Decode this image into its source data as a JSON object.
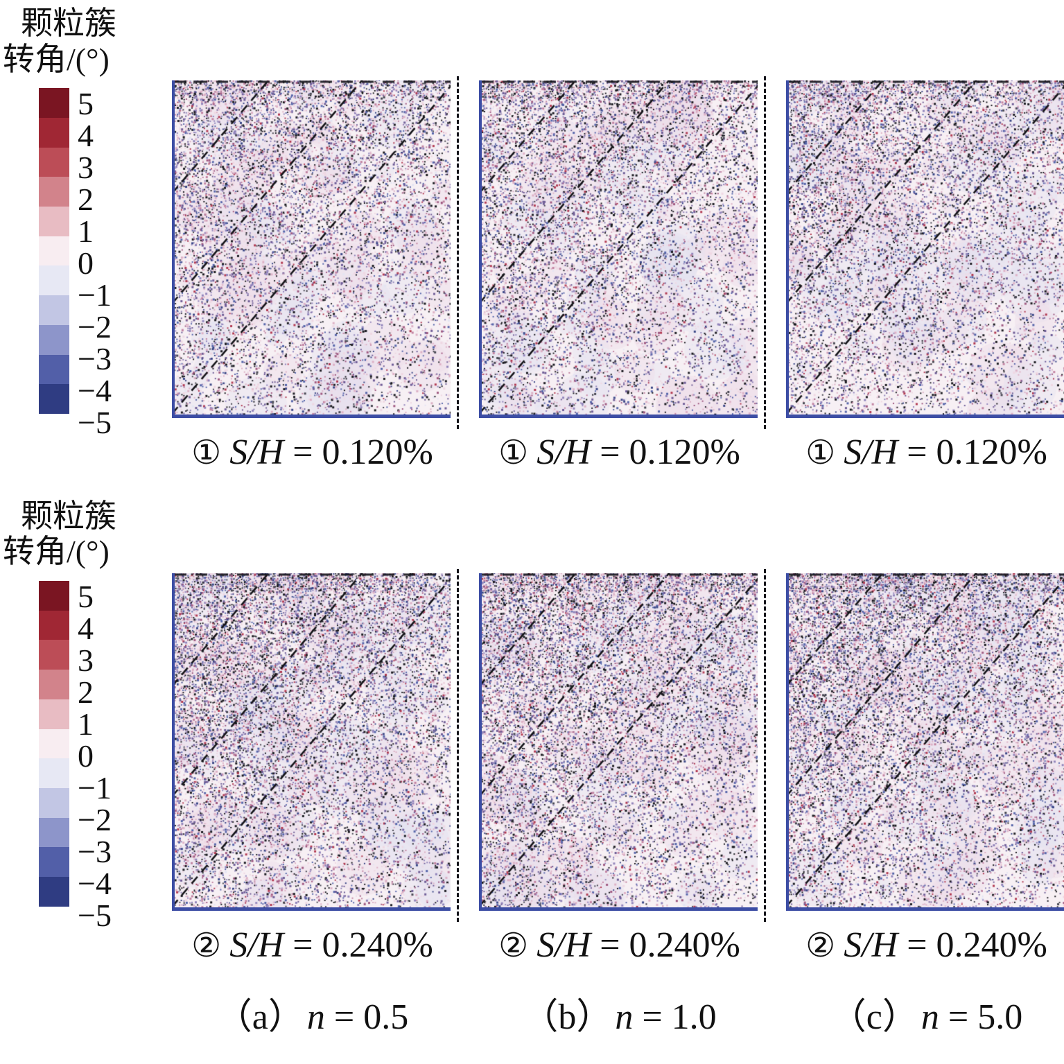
{
  "figure": {
    "legend": {
      "title_lines": [
        "颗粒簇",
        "转角/(°)"
      ],
      "tick_labels": [
        "5",
        "4",
        "3",
        "2",
        "1",
        "0",
        "−1",
        "−2",
        "−3",
        "−4",
        "−5"
      ],
      "colors": [
        "#7a1522",
        "#a02734",
        "#bc4d57",
        "#d2838b",
        "#e8bcc3",
        "#f8edf1",
        "#e7e8f4",
        "#c2c6e4",
        "#8d95ca",
        "#525fa8",
        "#2f3c82"
      ]
    },
    "rows": [
      {
        "label": {
          "circle": "①",
          "symbol": "S/H",
          "eq": " = 0.120%"
        }
      },
      {
        "label": {
          "circle": "②",
          "symbol": "S/H",
          "eq": " = 0.240%"
        }
      }
    ],
    "captions": [
      {
        "prefix": "（a）",
        "symbol": "n",
        "eq": " = 0.5"
      },
      {
        "prefix": "（b）",
        "symbol": "n",
        "eq": " = 1.0"
      },
      {
        "prefix": "（c）",
        "symbol": "n",
        "eq": " = 5.0"
      }
    ]
  },
  "render": {
    "panels": [
      {
        "seed": 101,
        "density": 0.52
      },
      {
        "seed": 202,
        "density": 0.52
      },
      {
        "seed": 303,
        "density": 0.52
      },
      {
        "seed": 404,
        "density": 0.64
      },
      {
        "seed": 505,
        "density": 0.64
      },
      {
        "seed": 606,
        "density": 0.64
      }
    ],
    "bands": [
      0.33,
      0.66,
      0.99
    ],
    "band_slope": 1.18
  },
  "chart_data": {
    "type": "heatmap",
    "value_label": "颗粒簇转角/(°)",
    "colorbar": {
      "orientation": "vertical",
      "position": "left",
      "range": [
        -5,
        5
      ],
      "ticks": [
        5,
        4,
        3,
        2,
        1,
        0,
        -1,
        -2,
        -3,
        -4,
        -5
      ],
      "colors": [
        "#7a1522",
        "#a02734",
        "#bc4d57",
        "#d2838b",
        "#e8bcc3",
        "#f8edf1",
        "#e7e8f4",
        "#c2c6e4",
        "#8d95ca",
        "#525fa8",
        "#2f3c82"
      ]
    },
    "grid": {
      "rows": 2,
      "cols": 3
    },
    "panels": [
      {
        "row": 0,
        "col": 0,
        "label": "① S/H = 0.120%",
        "caption": "（a）n = 0.5",
        "n": 0.5,
        "S_over_H_percent": 0.12
      },
      {
        "row": 0,
        "col": 1,
        "label": "① S/H = 0.120%",
        "caption": "（b）n = 1.0",
        "n": 1.0,
        "S_over_H_percent": 0.12
      },
      {
        "row": 0,
        "col": 2,
        "label": "① S/H = 0.120%",
        "caption": "（c）n = 5.0",
        "n": 5.0,
        "S_over_H_percent": 0.12
      },
      {
        "row": 1,
        "col": 0,
        "label": "② S/H = 0.240%",
        "caption": "（a）n = 0.5",
        "n": 0.5,
        "S_over_H_percent": 0.24
      },
      {
        "row": 1,
        "col": 1,
        "label": "② S/H = 0.240%",
        "caption": "（b）n = 1.0",
        "n": 1.0,
        "S_over_H_percent": 0.24
      },
      {
        "row": 1,
        "col": 2,
        "label": "② S/H = 0.240%",
        "caption": "（c）n = 5.0",
        "n": 5.0,
        "S_over_H_percent": 0.24
      }
    ],
    "notes": "每幅图为颗粒簇转角散斑场：左、下边界为蓝色实线，右边界为黑色竖直虚线，左上部有多条自左下向右上的黑色虚线剪切带，上部颗粒转角较大、右下部接近 0"
  }
}
